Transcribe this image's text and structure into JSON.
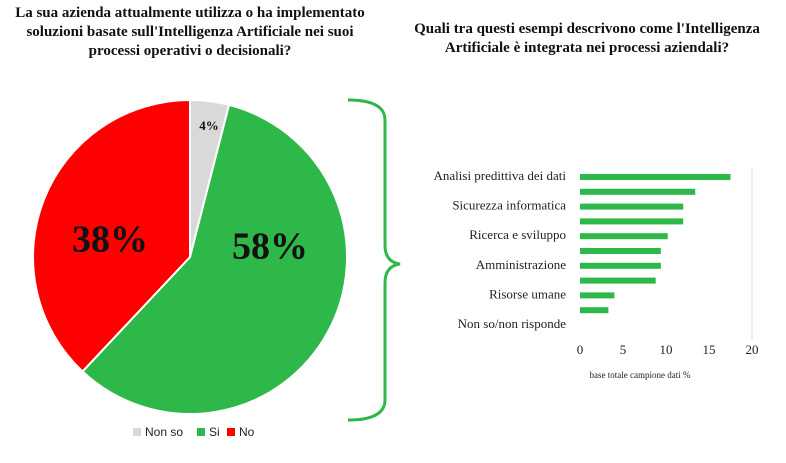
{
  "chart_data": [
    {
      "type": "pie",
      "title": "La sua azienda attualmente utilizza o ha implementato soluzioni basate sull'Intelligenza Artificiale nei suoi processi operativi o decisionali?",
      "categories": [
        "Non so",
        "Si",
        "No"
      ],
      "values": [
        4,
        58,
        38
      ],
      "value_labels": [
        "4%",
        "58%",
        "38%"
      ],
      "colors": [
        "#d9d9d9",
        "#2fb84a",
        "#ff0000"
      ],
      "legend": "bottom"
    },
    {
      "type": "hbar",
      "title": "Quali tra questi esempi descrivono come l'Intelligenza Artificiale è integrata nei processi aziendali?",
      "categories": [
        "Analisi predittiva dei dati",
        null,
        "Sicurezza informatica",
        null,
        "Ricerca e sviluppo",
        null,
        "Amministrazione",
        null,
        "Risorse umane",
        null,
        "Non so/non risponde"
      ],
      "values": [
        17.5,
        13.4,
        12,
        12,
        10.2,
        9.4,
        9.4,
        8.8,
        4,
        3.3,
        0
      ],
      "color": "#2fb84a",
      "xlabel": "base totale campione dati %",
      "xlim": [
        0,
        20
      ],
      "xticks": [
        0,
        5,
        10,
        15,
        20
      ]
    }
  ]
}
